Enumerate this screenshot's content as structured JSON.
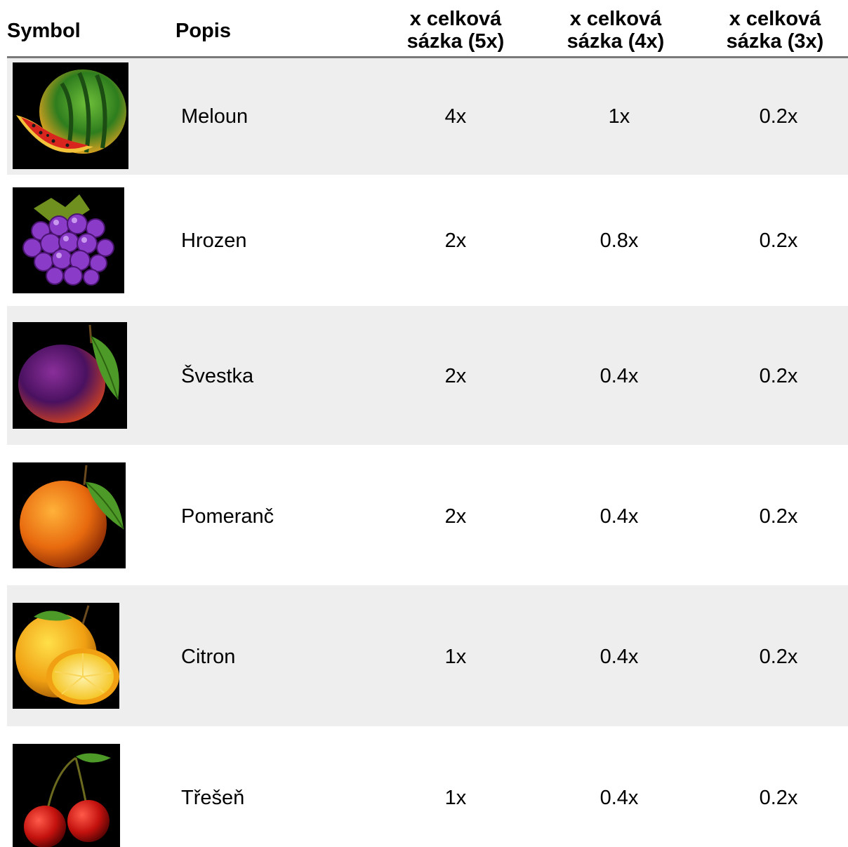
{
  "table": {
    "headers": {
      "symbol": "Symbol",
      "popis": "Popis",
      "col5_line1": "x celková",
      "col5_line2": "sázka (5x)",
      "col4_line1": "x celková",
      "col4_line2": "sázka (4x)",
      "col3_line1": "x celková",
      "col3_line2": "sázka (3x)"
    },
    "rows": [
      {
        "icon": "watermelon-icon",
        "name": "Meloun",
        "x5": "4x",
        "x4": "1x",
        "x3": "0.2x"
      },
      {
        "icon": "grapes-icon",
        "name": "Hrozen",
        "x5": "2x",
        "x4": "0.8x",
        "x3": "0.2x"
      },
      {
        "icon": "plum-icon",
        "name": "Švestka",
        "x5": "2x",
        "x4": "0.4x",
        "x3": "0.2x"
      },
      {
        "icon": "orange-icon",
        "name": "Pomeranč",
        "x5": "2x",
        "x4": "0.4x",
        "x3": "0.2x"
      },
      {
        "icon": "lemon-icon",
        "name": "Citron",
        "x5": "1x",
        "x4": "0.4x",
        "x3": "0.2x"
      },
      {
        "icon": "cherry-icon",
        "name": "Třešeň",
        "x5": "1x",
        "x4": "0.4x",
        "x3": "0.2x"
      }
    ]
  }
}
